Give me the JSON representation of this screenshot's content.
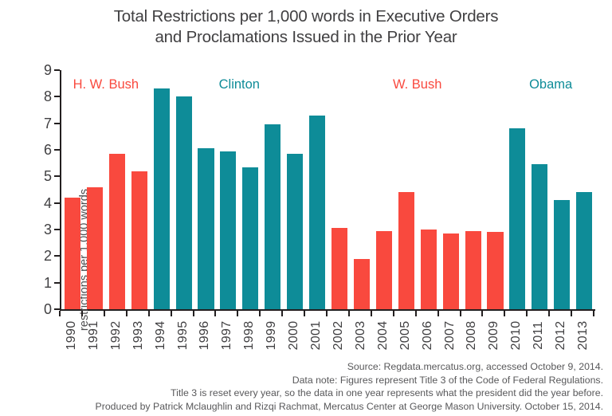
{
  "title": {
    "line1": "Total Restrictions per 1,000 words in Executive Orders",
    "line2": "and Proclamations Issued in the Prior Year"
  },
  "colors": {
    "red": "#f9493e",
    "teal": "#0e8c98",
    "axis": "#231f20",
    "title_text": "#414042",
    "footer_text": "#58585a"
  },
  "chart_data": {
    "type": "bar",
    "title": "Total Restrictions per 1,000 words in Executive Orders and Proclamations Issued in the Prior Year",
    "xlabel": "",
    "ylabel": "restrictions per 1,000 words",
    "ylim": [
      0,
      9
    ],
    "ytick_interval": 1,
    "grid": false,
    "legend": "none (color-coded president labels above bar groups)",
    "categories": [
      "1990",
      "1991",
      "1992",
      "1993",
      "1994",
      "1995",
      "1996",
      "1997",
      "1998",
      "1999",
      "2000",
      "2001",
      "2002",
      "2003",
      "2004",
      "2005",
      "2006",
      "2007",
      "2008",
      "2009",
      "2010",
      "2011",
      "2012",
      "2013"
    ],
    "values": [
      4.2,
      4.6,
      5.85,
      5.2,
      8.3,
      8.0,
      6.05,
      5.95,
      5.35,
      6.95,
      5.85,
      7.3,
      3.05,
      1.9,
      2.95,
      4.4,
      3.0,
      2.85,
      2.95,
      2.9,
      6.8,
      5.45,
      4.1,
      4.4
    ],
    "presidents": [
      {
        "name": "H. W. Bush",
        "color_key": "red",
        "start_index": 0,
        "end_index": 3
      },
      {
        "name": "Clinton",
        "color_key": "teal",
        "start_index": 4,
        "end_index": 11
      },
      {
        "name": "W. Bush",
        "color_key": "red",
        "start_index": 12,
        "end_index": 19
      },
      {
        "name": "Obama",
        "color_key": "teal",
        "start_index": 20,
        "end_index": 23
      }
    ]
  },
  "footer": {
    "lines": [
      "Source: Regdata.mercatus.org, accessed October 9, 2014.",
      "Data note: Figures represent Title 3 of the Code of Federal Regulations.",
      "Title 3 is reset every year, so the data in one year represents what the president did the year before.",
      "Produced by Patrick Mclaughlin and Rizqi Rachmat, Mercatus Center at George Mason University. October 15, 2014."
    ]
  }
}
